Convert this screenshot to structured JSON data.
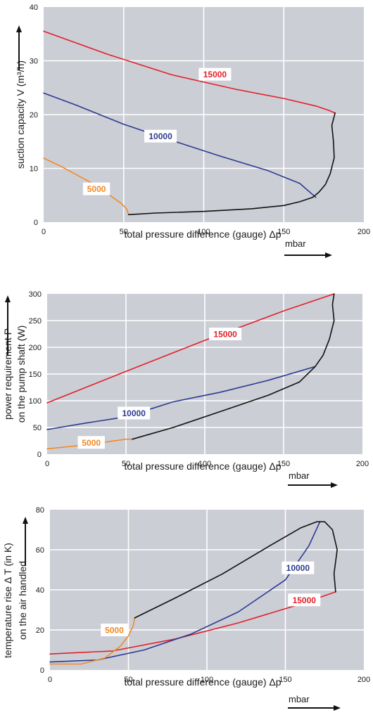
{
  "chart_data": [
    {
      "type": "line",
      "xlabel": "total pressure difference (gauge)  Δp",
      "xunit": "mbar",
      "ylabel": "suction capacity V (m³/h)",
      "xlim": [
        0,
        200
      ],
      "ylim": [
        0,
        40
      ],
      "xticks": [
        0,
        50,
        100,
        150,
        200
      ],
      "yticks": [
        0,
        10,
        20,
        30,
        40
      ],
      "grid": true,
      "series": [
        {
          "name": "15000",
          "color": "#e3202a",
          "label_at": [
            107,
            27.5
          ],
          "x": [
            0,
            40,
            80,
            120,
            150,
            170,
            178,
            182
          ],
          "y": [
            35.5,
            31.2,
            27.4,
            24.7,
            23.0,
            21.6,
            20.8,
            20.3
          ]
        },
        {
          "name": "10000",
          "color": "#2b3a8f",
          "label_at": [
            73,
            16
          ],
          "x": [
            0,
            20,
            50,
            80,
            110,
            140,
            160,
            170
          ],
          "y": [
            24,
            21.8,
            18.2,
            15.2,
            12.3,
            9.6,
            7.2,
            4.6
          ]
        },
        {
          "name": "5000",
          "color": "#f08a24",
          "label_at": [
            33,
            6.2
          ],
          "x": [
            0,
            10,
            20,
            30,
            40,
            48,
            52,
            53
          ],
          "y": [
            11.9,
            10.5,
            8.9,
            7.3,
            5.3,
            3.6,
            2.4,
            1.4
          ]
        },
        {
          "name": "",
          "color": "#111111",
          "label_at": null,
          "x": [
            53,
            70,
            100,
            130,
            150,
            160,
            168,
            172,
            176,
            179,
            181.5,
            181,
            180,
            182
          ],
          "y": [
            1.4,
            1.7,
            2.0,
            2.5,
            3.1,
            3.8,
            4.6,
            5.6,
            7.0,
            9.0,
            12.0,
            15.0,
            18.0,
            20.3
          ]
        }
      ]
    },
    {
      "type": "line",
      "xlabel": "total pressure difference (gauge)  Δp",
      "xunit": "mbar",
      "ylabel": "power requirement P",
      "ylabel2": "on the pump shaft (W)",
      "xlim": [
        0,
        200
      ],
      "ylim": [
        0,
        300
      ],
      "xticks": [
        0,
        50,
        100,
        150,
        200
      ],
      "yticks": [
        0,
        50,
        100,
        150,
        200,
        250,
        300
      ],
      "grid": true,
      "series": [
        {
          "name": "15000",
          "color": "#e3202a",
          "label_at": [
            113,
            225
          ],
          "x": [
            0,
            50,
            100,
            150,
            182
          ],
          "y": [
            96,
            155,
            213,
            268,
            300
          ]
        },
        {
          "name": "10000",
          "color": "#2b3a8f",
          "label_at": [
            55,
            77
          ],
          "x": [
            0,
            20,
            50,
            80,
            110,
            140,
            170
          ],
          "y": [
            46,
            56,
            70,
            98,
            116,
            138,
            164
          ]
        },
        {
          "name": "5000",
          "color": "#f08a24",
          "label_at": [
            28,
            22
          ],
          "x": [
            0,
            20,
            40,
            50,
            54
          ],
          "y": [
            10,
            16,
            24,
            28,
            28
          ]
        },
        {
          "name": "",
          "color": "#111111",
          "label_at": null,
          "x": [
            54,
            80,
            110,
            140,
            160,
            170,
            175,
            179,
            182,
            181,
            182
          ],
          "y": [
            28,
            50,
            80,
            110,
            135,
            164,
            185,
            215,
            250,
            280,
            300
          ]
        }
      ]
    },
    {
      "type": "line",
      "xlabel": "total pressure difference (gauge)  Δp",
      "xunit": "mbar",
      "ylabel": "temperature rise Δ T    (in K)",
      "ylabel2": "on the air handled",
      "xlim": [
        0,
        200
      ],
      "ylim": [
        0,
        80
      ],
      "xticks": [
        0,
        50,
        100,
        150,
        200
      ],
      "yticks": [
        0,
        20,
        40,
        60,
        80
      ],
      "grid": true,
      "series": [
        {
          "name": "15000",
          "color": "#e3202a",
          "label_at": [
            162,
            35
          ],
          "x": [
            0,
            40,
            80,
            120,
            160,
            182
          ],
          "y": [
            8,
            9.5,
            15.5,
            23.5,
            33,
            39
          ]
        },
        {
          "name": "10000",
          "color": "#2b3a8f",
          "label_at": [
            158,
            51
          ],
          "x": [
            0,
            30,
            60,
            90,
            120,
            150,
            165,
            172
          ],
          "y": [
            4,
            5,
            10,
            18,
            29,
            45,
            62,
            74
          ]
        },
        {
          "name": "5000",
          "color": "#f08a24",
          "label_at": [
            41,
            20
          ],
          "x": [
            0,
            20,
            35,
            45,
            50,
            53,
            54
          ],
          "y": [
            3,
            3,
            6,
            12,
            17,
            22,
            26
          ]
        },
        {
          "name": "",
          "color": "#111111",
          "label_at": null,
          "x": [
            54,
            80,
            110,
            140,
            160,
            170,
            175,
            180,
            183,
            181,
            182
          ],
          "y": [
            26,
            36,
            48,
            62,
            71,
            74,
            74,
            70,
            60,
            48,
            39
          ]
        }
      ]
    }
  ]
}
